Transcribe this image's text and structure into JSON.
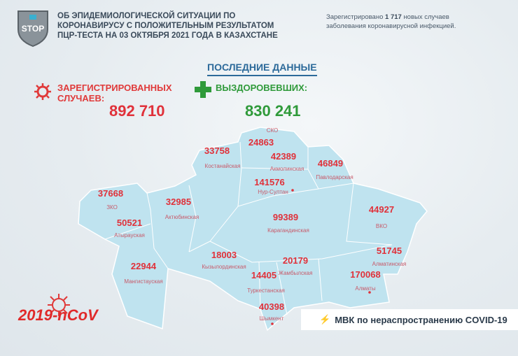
{
  "logo": {
    "text": "STOP"
  },
  "header": {
    "title_lines": [
      "ОБ ЭПИДЕМИОЛОГИЧЕСКОЙ СИТУАЦИИ ПО",
      "КОРОНАВИРУСУ С ПОЛОЖИТЕЛЬНЫМ РЕЗУЛЬТАТОМ",
      "ПЦР-ТЕСТА НА 03 ОКТЯБРЯ 2021 ГОДА В КАЗАХСТАНЕ"
    ],
    "note_prefix": "Зарегистрировано",
    "note_count": "1 717",
    "note_suffix": "новых случаев",
    "note_line2": "заболевания коронавирусной инфекцией."
  },
  "latest_label": "ПОСЛЕДНИЕ ДАННЫЕ",
  "registered": {
    "label_line1": "ЗАРЕГИСТРИРОВАННЫХ",
    "label_line2": "СЛУЧАЕВ:",
    "value": "892 710",
    "icon": "virus-icon"
  },
  "recovered": {
    "label": "ВЫЗДОРОВЕВШИХ:",
    "value": "830 241",
    "icon": "plus-icon"
  },
  "regions": [
    {
      "name": "СКО",
      "value": "24863"
    },
    {
      "name": "Костанайская",
      "value": "33758"
    },
    {
      "name": "Акмолинская",
      "value": "42389"
    },
    {
      "name": "Павлодарская",
      "value": "46849"
    },
    {
      "name": "Нур-Султан",
      "value": "141576"
    },
    {
      "name": "ЗКО",
      "value": "37668"
    },
    {
      "name": "Актюбинская",
      "value": "32985"
    },
    {
      "name": "Карагандинская",
      "value": "99389"
    },
    {
      "name": "ВКО",
      "value": "44927"
    },
    {
      "name": "Атырауская",
      "value": "50521"
    },
    {
      "name": "Алматинская",
      "value": "51745"
    },
    {
      "name": "Кызылординская",
      "value": "18003"
    },
    {
      "name": "Жамбылская",
      "value": "20179"
    },
    {
      "name": "Туркестанская",
      "value": "14405"
    },
    {
      "name": "Мангистауская",
      "value": "22944"
    },
    {
      "name": "Алматы",
      "value": "170068"
    },
    {
      "name": "Шымкент",
      "value": "40398"
    }
  ],
  "colors": {
    "map": "#bfe3ef",
    "red": "#e0313a",
    "green": "#2f9a3a",
    "blue": "#2c6a9a"
  },
  "ncov_label": "2019-nCoV",
  "footer": {
    "text": "МВК по нераспространению COVID-19",
    "icon": "lightning-icon"
  }
}
